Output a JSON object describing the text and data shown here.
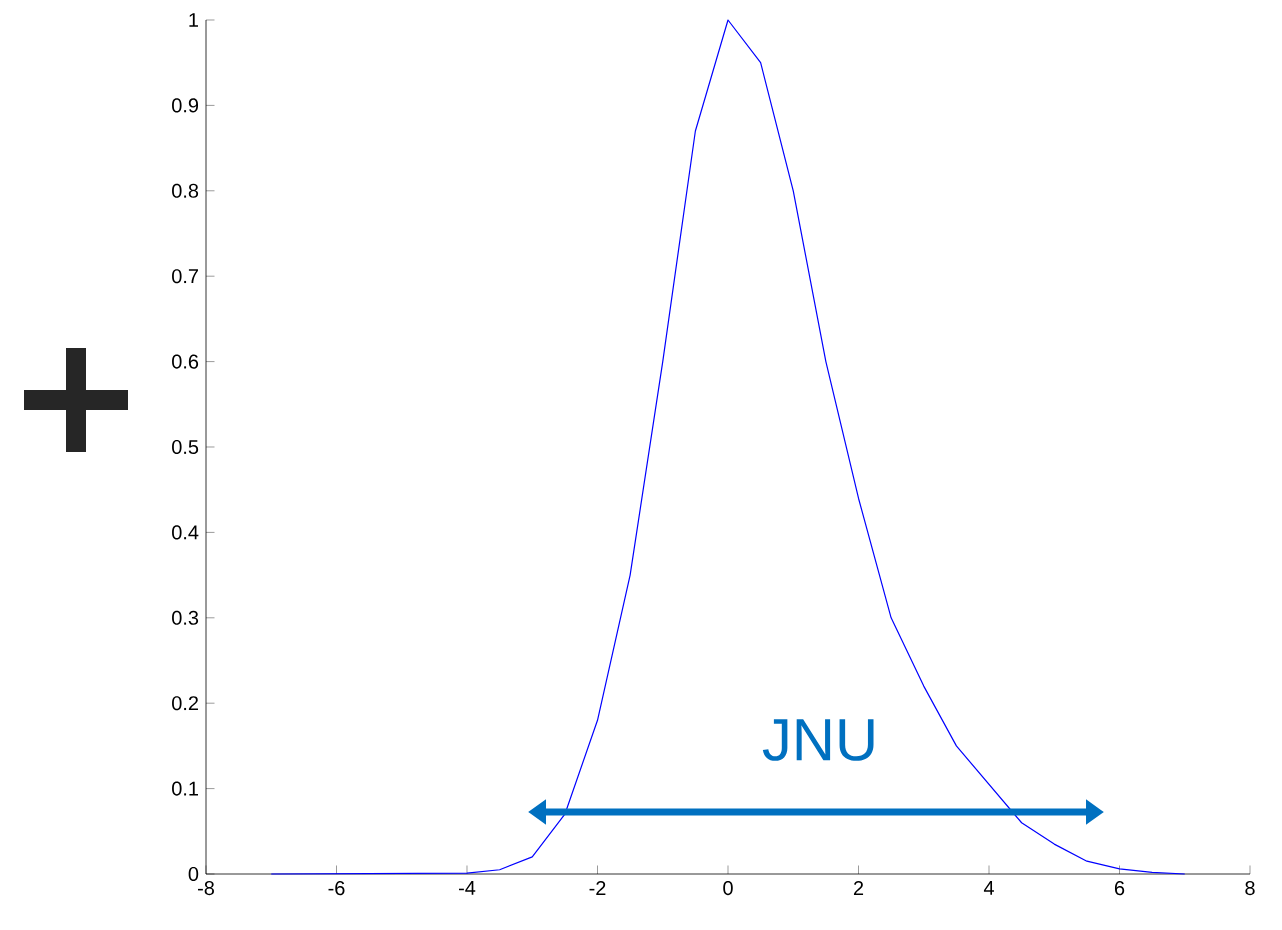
{
  "chart_data": {
    "type": "line",
    "color": "#0000ff",
    "marker": "none",
    "line_style": "solid",
    "x": [
      -7,
      -4,
      -3.5,
      -3,
      -2.5,
      -2,
      -1.5,
      -1,
      -0.5,
      0,
      0.5,
      1,
      1.5,
      2,
      2.5,
      3,
      3.5,
      4,
      4.5,
      5,
      5.5,
      6,
      6.5,
      7
    ],
    "values": [
      0,
      0.001,
      0.005,
      0.02,
      0.07,
      0.18,
      0.35,
      0.6,
      0.87,
      1,
      0.95,
      0.8,
      0.6,
      0.44,
      0.3,
      0.22,
      0.15,
      0.105,
      0.06,
      0.035,
      0.015,
      0.006,
      0.002,
      0
    ],
    "xlim": [
      -8,
      8
    ],
    "ylim": [
      0,
      1
    ],
    "xticks": [
      -8,
      -6,
      -4,
      -2,
      0,
      2,
      4,
      6,
      8
    ],
    "yticks": [
      0,
      0.1,
      0.2,
      0.3,
      0.4,
      0.5,
      0.6,
      0.7,
      0.8,
      0.9,
      1
    ],
    "annotations": [
      "JNU"
    ]
  }
}
